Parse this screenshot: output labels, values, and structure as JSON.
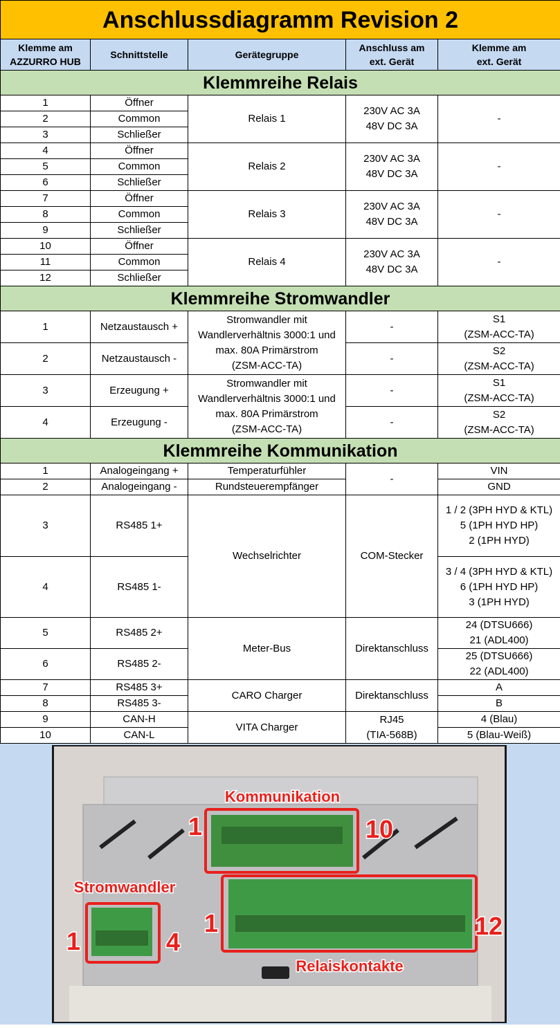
{
  "title": "Anschlussdiagramm Revision 2",
  "header": [
    "Klemme am\nAZZURRO HUB",
    "Schnittstelle",
    "Gerätegruppe",
    "Anschluss am\next. Gerät",
    "Klemme am\next. Gerät"
  ],
  "sections": [
    {
      "title": "Klemmreihe Relais",
      "rows": [
        [
          "1",
          "Öffner",
          "Relais 1",
          "230V AC 3A\n48V DC 3A",
          "-"
        ],
        [
          "2",
          "Common"
        ],
        [
          "3",
          "Schließer"
        ],
        [
          "4",
          "Öffner",
          "Relais 2",
          "230V AC 3A\n48V DC 3A",
          "-"
        ],
        [
          "5",
          "Common"
        ],
        [
          "6",
          "Schließer"
        ],
        [
          "7",
          "Öffner",
          "Relais 3",
          "230V AC 3A\n48V DC 3A",
          "-"
        ],
        [
          "8",
          "Common"
        ],
        [
          "9",
          "Schließer"
        ],
        [
          "10",
          "Öffner",
          "Relais 4",
          "230V AC 3A\n48V DC 3A",
          "-"
        ],
        [
          "11",
          "Common"
        ],
        [
          "12",
          "Schließer"
        ]
      ]
    },
    {
      "title": "Klemmreihe Stromwandler",
      "rows": [
        [
          "1",
          "Netzaustausch +",
          "Stromwandler mit\nWandlerverhältnis 3000:1 und\nmax. 80A Primärstrom\n(ZSM-ACC-TA)",
          "-",
          "S1\n(ZSM-ACC-TA)"
        ],
        [
          "2",
          "Netzaustausch -",
          "-",
          "S2\n(ZSM-ACC-TA)"
        ],
        [
          "3",
          "Erzeugung +",
          "Stromwandler mit\nWandlerverhältnis 3000:1 und\nmax. 80A Primärstrom\n(ZSM-ACC-TA)",
          "-",
          "S1\n(ZSM-ACC-TA)"
        ],
        [
          "4",
          "Erzeugung -",
          "-",
          "S2\n(ZSM-ACC-TA)"
        ]
      ]
    },
    {
      "title": "Klemmreihe Kommunikation",
      "rows": [
        [
          "1",
          "Analogeingang +",
          "Temperaturfühler",
          "-",
          "VIN"
        ],
        [
          "2",
          "Analogeingang -",
          "Rundsteuerempfänger",
          "GND"
        ],
        [
          "3",
          "RS485 1+",
          "Wechselrichter",
          "COM-Stecker",
          "1 / 2 (3PH HYD & KTL)\n5 (1PH HYD HP)\n2 (1PH HYD)"
        ],
        [
          "4",
          "RS485 1-",
          "3 / 4 (3PH HYD & KTL)\n6 (1PH HYD HP)\n3 (1PH HYD)"
        ],
        [
          "5",
          "RS485 2+",
          "Meter-Bus",
          "Direktanschluss",
          "24 (DTSU666)\n21 (ADL400)"
        ],
        [
          "6",
          "RS485 2-",
          "25 (DTSU666)\n22 (ADL400)"
        ],
        [
          "7",
          "RS485 3+",
          "CARO Charger",
          "Direktanschluss",
          "A"
        ],
        [
          "8",
          "RS485 3-",
          "B"
        ],
        [
          "9",
          "CAN-H",
          "VITA Charger",
          "RJ45\n(TIA-568B)",
          "4 (Blau)"
        ],
        [
          "10",
          "CAN-L",
          "5 (Blau-Weiß)"
        ]
      ]
    }
  ],
  "photo": {
    "kommunikation": "Kommunikation",
    "komm_first": "1",
    "komm_last": "10",
    "stromwandler": "Stromwandler",
    "strom_first": "1",
    "strom_last": "4",
    "relais_first": "1",
    "relais_last": "12",
    "relaiskontakte": "Relaiskontakte"
  }
}
